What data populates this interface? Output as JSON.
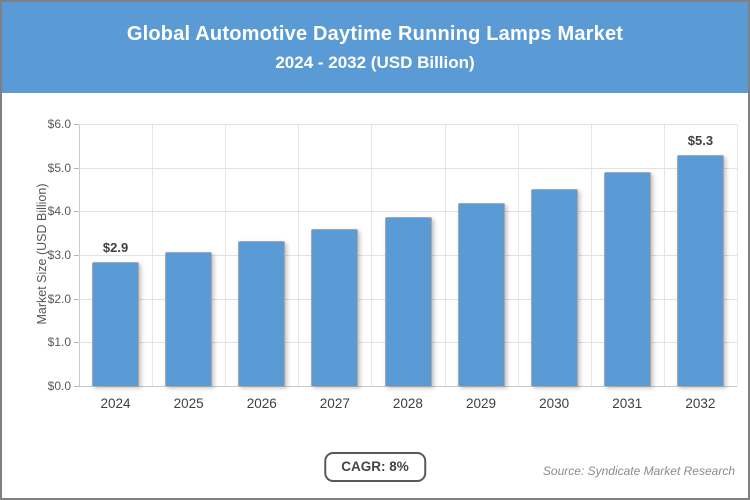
{
  "header": {
    "title": "Global Automotive Daytime Running Lamps Market",
    "subtitle": "2024 - 2032 (USD Billion)"
  },
  "chart_data": {
    "type": "bar",
    "title": "Global Automotive Daytime Running Lamps Market 2024 - 2032 (USD Billion)",
    "categories": [
      "2024",
      "2025",
      "2026",
      "2027",
      "2028",
      "2029",
      "2030",
      "2031",
      "2032"
    ],
    "values": [
      2.85,
      3.08,
      3.32,
      3.59,
      3.88,
      4.19,
      4.52,
      4.89,
      5.28
    ],
    "point_labels": [
      "$2.9",
      "",
      "",
      "",
      "",
      "",
      "",
      "",
      "$5.3"
    ],
    "xlabel": "",
    "ylabel": "Market Size (USD Billion)",
    "ylim": [
      0,
      6
    ],
    "yticks": [
      {
        "value": 0,
        "label": "$0.0"
      },
      {
        "value": 1,
        "label": "$1.0"
      },
      {
        "value": 2,
        "label": "$2.0"
      },
      {
        "value": 3,
        "label": "$3.0"
      },
      {
        "value": 4,
        "label": "$4.0"
      },
      {
        "value": 5,
        "label": "$5.0"
      },
      {
        "value": 6,
        "label": "$6.0"
      }
    ],
    "grid": true,
    "legend_position": "none",
    "bar_color": "#5B9BD5"
  },
  "footer": {
    "cagr_label": "CAGR: 8%",
    "source": "Source: Syndicate Market Research"
  },
  "colors": {
    "accent": "#5B9BD5",
    "header_text": "#FFFFFF",
    "gridline": "#E2E2E2",
    "axis_line": "#C9C9C9",
    "tick_text": "#595959",
    "label_text": "#404040",
    "source_text": "#8C8C8C",
    "badge_border": "#595959",
    "frame_border": "#808080"
  }
}
